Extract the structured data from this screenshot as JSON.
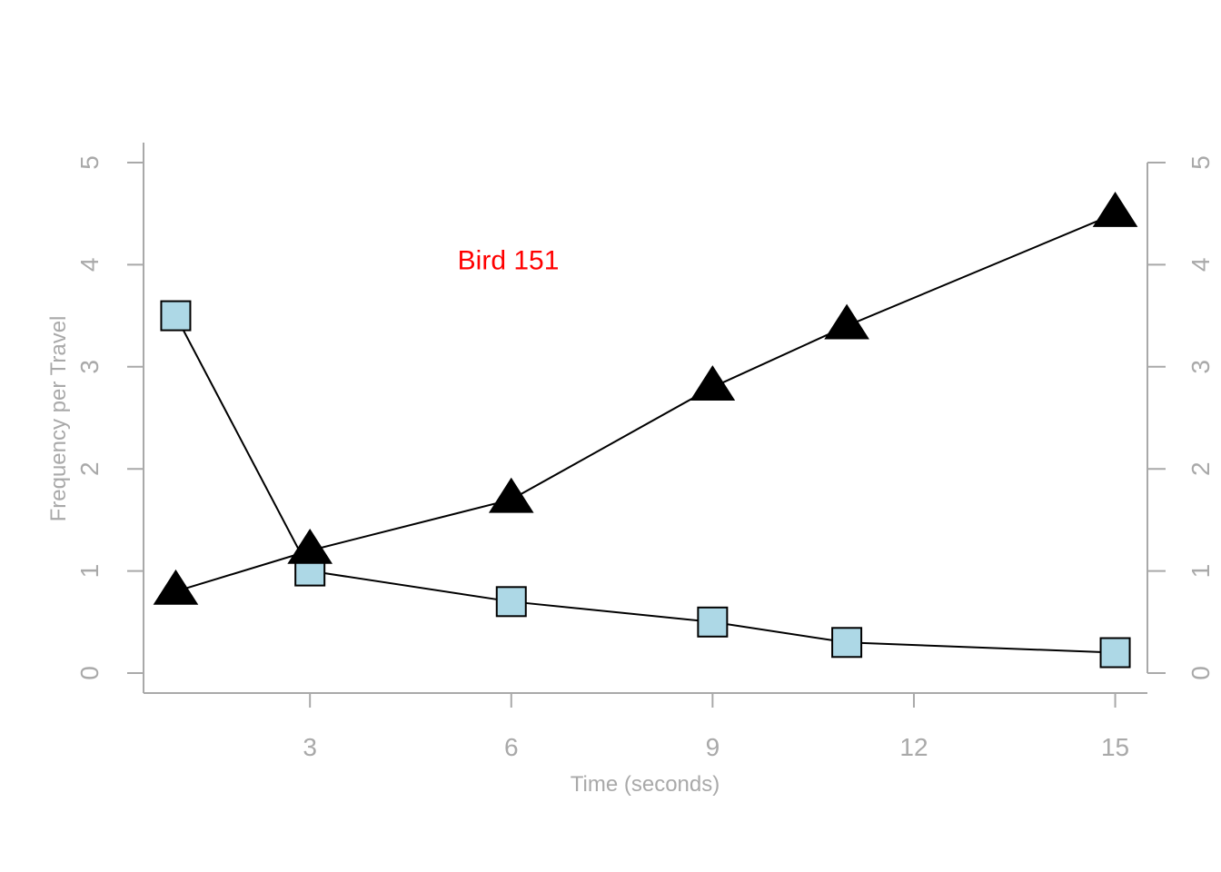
{
  "chart_data": {
    "type": "line",
    "title": "",
    "xlabel": "Time (seconds)",
    "ylabel": "Frequency per Travel",
    "xlim": [
      0.52,
      15.48
    ],
    "ylim": [
      0,
      5
    ],
    "x_ticks": [
      "3",
      "6",
      "9",
      "12",
      "15"
    ],
    "y_ticks": [
      "0",
      "1",
      "2",
      "3",
      "4",
      "5"
    ],
    "y_ticks_right": [
      "0",
      "1",
      "2",
      "3",
      "4",
      "5"
    ],
    "grid": false,
    "series": [
      {
        "marker": "square",
        "color": "#add8e6",
        "x": [
          1,
          3,
          6,
          9,
          11,
          15
        ],
        "y": [
          3.5,
          1.0,
          0.7,
          0.5,
          0.3,
          0.2
        ]
      },
      {
        "marker": "triangle",
        "color": "#000000",
        "x": [
          1,
          3,
          6,
          9,
          11,
          15
        ],
        "y": [
          0.8,
          1.2,
          1.7,
          2.8,
          3.4,
          4.5
        ]
      }
    ],
    "annotations": [
      {
        "text": "Bird 151",
        "x": 5.2,
        "y": 4.0,
        "color": "#ff0000"
      }
    ],
    "axis_color": "#a9a9a9"
  }
}
